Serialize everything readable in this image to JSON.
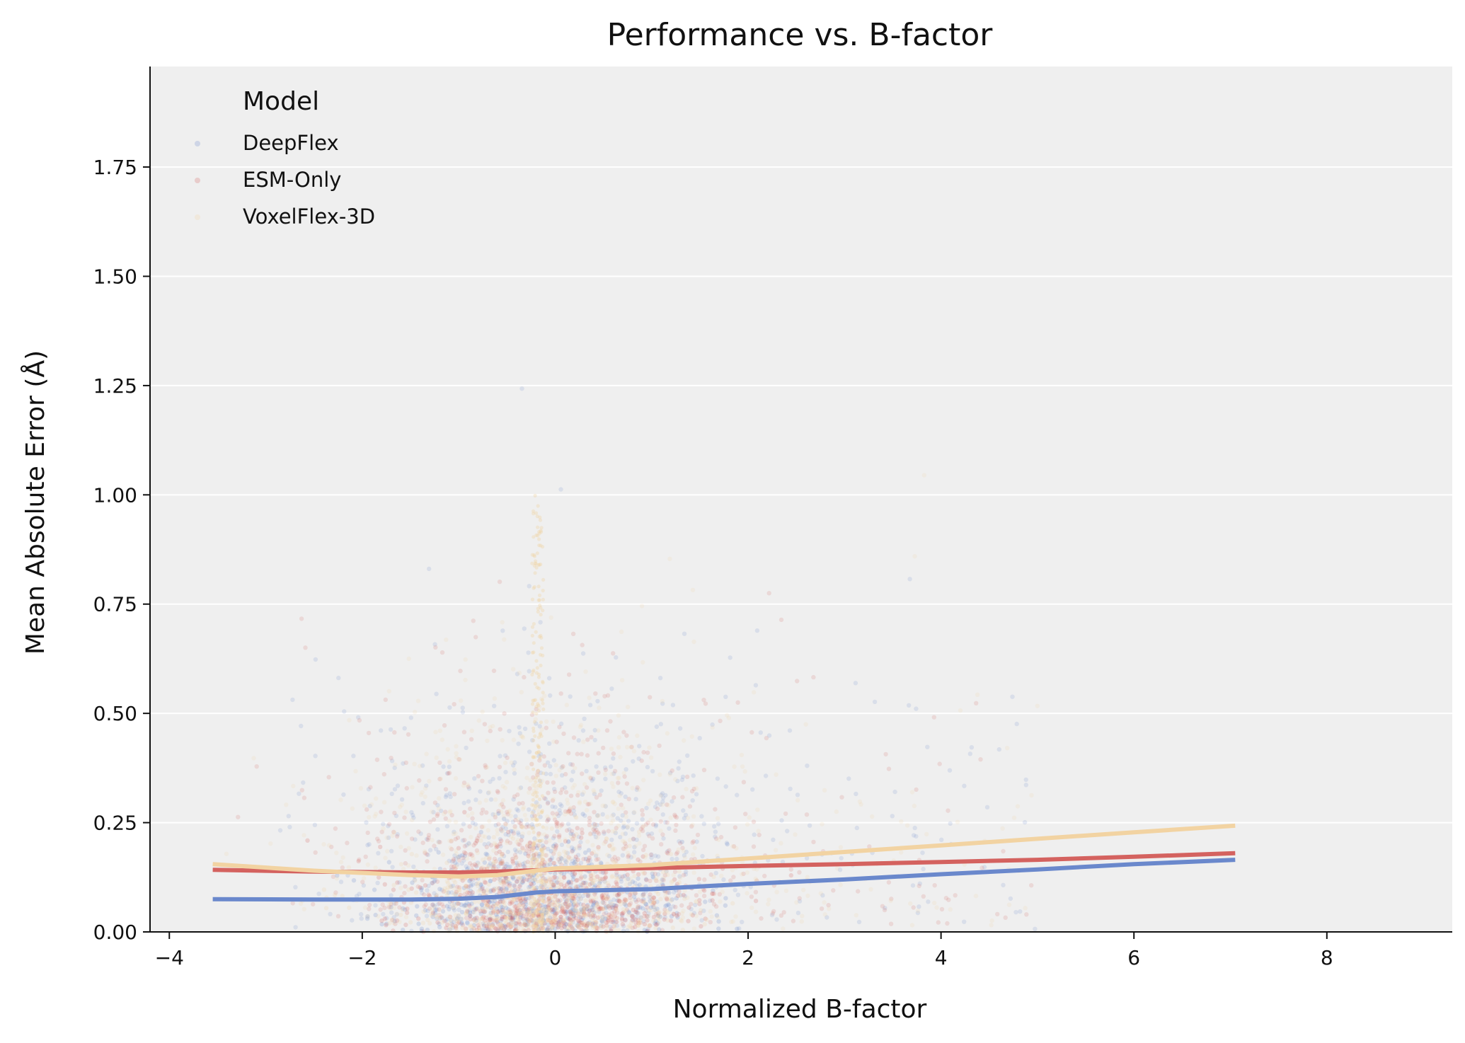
{
  "chart_data": {
    "type": "scatter",
    "title": "Performance vs. B-factor",
    "xlabel": "Normalized B-factor",
    "ylabel": "Mean Absolute Error (Å)",
    "xlim": [
      -4.2,
      9.3
    ],
    "ylim": [
      0,
      1.98
    ],
    "xticks": [
      -4,
      -2,
      0,
      2,
      4,
      6,
      8
    ],
    "xtick_labels": [
      "−4",
      "−2",
      "0",
      "2",
      "4",
      "6",
      "8"
    ],
    "yticks": [
      0,
      0.25,
      0.5,
      0.75,
      1.0,
      1.25,
      1.5,
      1.75
    ],
    "ytick_labels": [
      "0.00",
      "0.25",
      "0.50",
      "0.75",
      "1.00",
      "1.25",
      "1.50",
      "1.75"
    ],
    "grid": "horizontal",
    "background": "#efefef",
    "legend": {
      "title": "Model",
      "placement": "top-left",
      "entries": [
        "DeepFlex",
        "ESM-Only",
        "VoxelFlex-3D"
      ]
    },
    "series": [
      {
        "name": "DeepFlex",
        "color": "#6a88cc",
        "trend": {
          "x": [
            -3.55,
            -2.5,
            -1.5,
            -1.0,
            -0.6,
            -0.2,
            0.0,
            1.0,
            2.0,
            3.0,
            4.0,
            5.0,
            6.0,
            7.05
          ],
          "y": [
            0.075,
            0.074,
            0.074,
            0.076,
            0.08,
            0.09,
            0.093,
            0.098,
            0.11,
            0.12,
            0.132,
            0.143,
            0.155,
            0.165
          ]
        }
      },
      {
        "name": "ESM-Only",
        "color": "#d4625f",
        "trend": {
          "x": [
            -3.55,
            -2.5,
            -1.5,
            -1.0,
            -0.6,
            -0.2,
            0.0,
            1.0,
            2.0,
            3.0,
            4.0,
            5.0,
            6.0,
            7.05
          ],
          "y": [
            0.142,
            0.138,
            0.136,
            0.136,
            0.138,
            0.141,
            0.143,
            0.146,
            0.151,
            0.155,
            0.16,
            0.165,
            0.172,
            0.18
          ]
        }
      },
      {
        "name": "VoxelFlex-3D",
        "color": "#f2d3a2",
        "trend": {
          "x": [
            -3.55,
            -2.5,
            -1.5,
            -1.0,
            -0.6,
            -0.2,
            0.0,
            1.0,
            2.0,
            3.0,
            4.0,
            5.0,
            6.0,
            7.05
          ],
          "y": [
            0.155,
            0.14,
            0.13,
            0.127,
            0.13,
            0.14,
            0.145,
            0.153,
            0.168,
            0.183,
            0.198,
            0.213,
            0.228,
            0.243
          ]
        }
      }
    ]
  }
}
